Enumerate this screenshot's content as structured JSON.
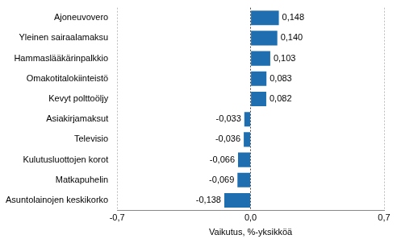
{
  "chart_data": {
    "type": "bar",
    "orientation": "horizontal",
    "x_label": "Vaikutus, %-yksikköä",
    "categories": [
      "Ajoneuvovero",
      "Yleinen sairaalamaksu",
      "Hammaslääkärinpalkkio",
      "Omakotitalokiinteistö",
      "Kevyt polttoöljy",
      "Asiakirjamaksut",
      "Televisio",
      "Kulutusluottojen korot",
      "Matkapuhelin",
      "Asuntolainojen keskikorko"
    ],
    "values": [
      0.148,
      0.14,
      0.103,
      0.083,
      0.082,
      -0.033,
      -0.036,
      -0.066,
      -0.069,
      -0.138
    ],
    "value_labels": [
      "0,148",
      "0,140",
      "0,103",
      "0,083",
      "0,082",
      "-0,033",
      "-0,036",
      "-0,066",
      "-0,069",
      "-0,138"
    ],
    "data_labels": true,
    "color": "#1f6fb0",
    "xlim": [
      -0.7,
      0.7
    ],
    "xticks": [
      {
        "value": -0.7,
        "label": "-0,7"
      },
      {
        "value": 0,
        "label": "0,0"
      },
      {
        "value": 0.7,
        "label": "0,7"
      }
    ],
    "grid": true
  }
}
